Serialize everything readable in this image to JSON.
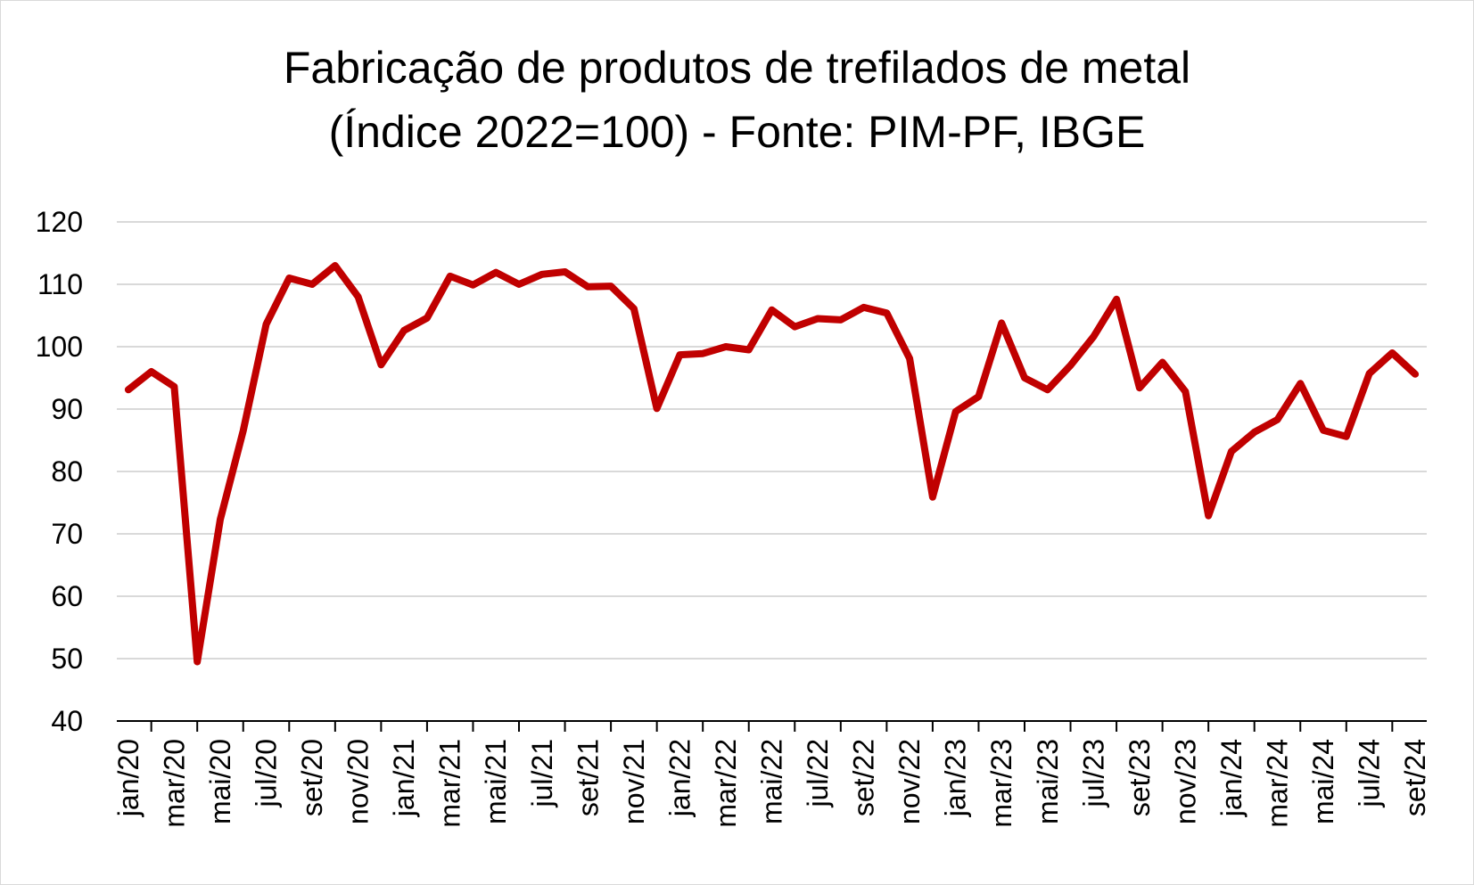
{
  "chart_data": {
    "type": "line",
    "title_line1": "Fabricação de produtos de trefilados de metal",
    "title_line2": "(Índice 2022=100) - Fonte: PIM-PF, IBGE",
    "xlabel": "",
    "ylabel": "",
    "ylim": [
      40,
      120
    ],
    "yticks": [
      40,
      50,
      60,
      70,
      80,
      90,
      100,
      110,
      120
    ],
    "grid": "horizontal",
    "legend": "none",
    "line_color": "#c00000",
    "x": [
      "jan/20",
      "fev/20",
      "mar/20",
      "abr/20",
      "mai/20",
      "jun/20",
      "jul/20",
      "ago/20",
      "set/20",
      "out/20",
      "nov/20",
      "dez/20",
      "jan/21",
      "fev/21",
      "mar/21",
      "abr/21",
      "mai/21",
      "jun/21",
      "jul/21",
      "ago/21",
      "set/21",
      "out/21",
      "nov/21",
      "dez/21",
      "jan/22",
      "fev/22",
      "mar/22",
      "abr/22",
      "mai/22",
      "jun/22",
      "jul/22",
      "ago/22",
      "set/22",
      "out/22",
      "nov/22",
      "dez/22",
      "jan/23",
      "fev/23",
      "mar/23",
      "abr/23",
      "mai/23",
      "jun/23",
      "jul/23",
      "ago/23",
      "set/23",
      "out/23",
      "nov/23",
      "dez/23",
      "jan/24",
      "fev/24",
      "mar/24",
      "abr/24",
      "mai/24",
      "jun/24",
      "jul/24",
      "ago/24",
      "set/24"
    ],
    "x_tick_labels": [
      "jan/20",
      "mar/20",
      "mai/20",
      "jul/20",
      "set/20",
      "nov/20",
      "jan/21",
      "mar/21",
      "mai/21",
      "jul/21",
      "set/21",
      "nov/21",
      "jan/22",
      "mar/22",
      "mai/22",
      "jul/22",
      "set/22",
      "nov/22",
      "jan/23",
      "mar/23",
      "mai/23",
      "jul/23",
      "set/23",
      "nov/23",
      "jan/24",
      "mar/24",
      "mai/24",
      "jul/24",
      "set/24"
    ],
    "series": [
      {
        "values": [
          93.1,
          96.0,
          93.6,
          49.5,
          72.3,
          86.5,
          103.6,
          111.0,
          110.0,
          113.0,
          108.0,
          97.1,
          102.6,
          104.6,
          111.3,
          109.9,
          111.9,
          110.0,
          111.6,
          112.0,
          109.6,
          109.7,
          106.1,
          90.1,
          98.7,
          98.9,
          100.0,
          99.5,
          105.9,
          103.2,
          104.5,
          104.3,
          106.3,
          105.4,
          98.1,
          75.9,
          89.6,
          92.0,
          103.8,
          95.0,
          93.1,
          97.0,
          101.6,
          107.6,
          93.4,
          97.5,
          92.8,
          72.9,
          83.2,
          86.3,
          88.3,
          94.1,
          86.6,
          85.6,
          95.7,
          99.0,
          95.6
        ]
      }
    ]
  }
}
